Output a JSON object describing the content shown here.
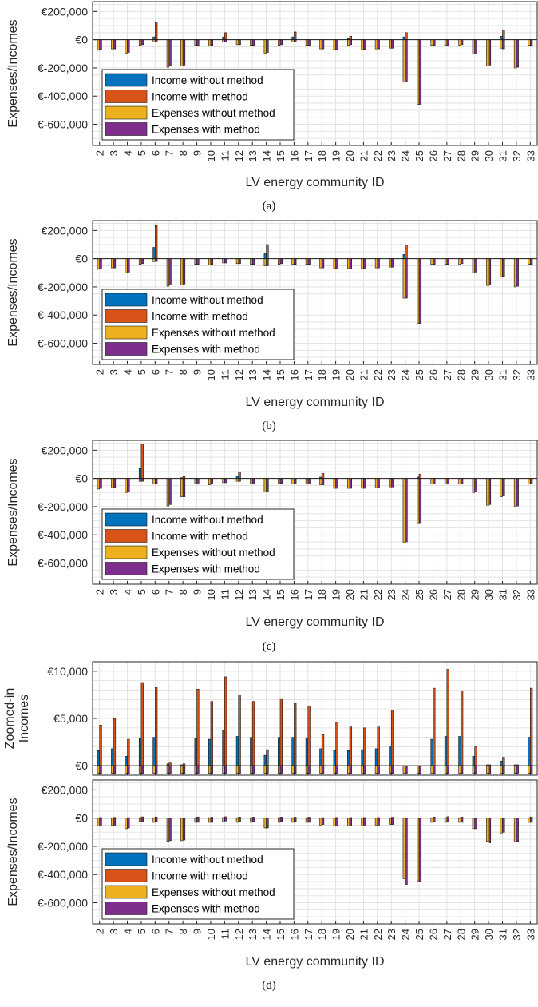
{
  "colors": {
    "income_without": "#0072BD",
    "income_with": "#D95319",
    "expenses_without": "#EDB120",
    "expenses_with": "#7E2F8E",
    "grid": "#e3e3e3",
    "axis": "#262626"
  },
  "legend_labels": [
    "Income without method",
    "Income with method",
    "Expenses without method",
    "Expenses with method"
  ],
  "chart_data": [
    {
      "type": "bar",
      "caption": "(a)",
      "ylabel": "Expenses/Incomes",
      "xlabel": "LV energy community ID",
      "ylim": [
        -750000,
        270000
      ],
      "yticks": [
        200000,
        0,
        -200000,
        -400000,
        -600000
      ],
      "ytick_labels": [
        "€200,000",
        "€0",
        "€-200,000",
        "€-400,000",
        "€-600,000"
      ],
      "grid": true,
      "legend_position": "lower-left",
      "categories": [
        "2",
        "3",
        "4",
        "5",
        "6",
        "7",
        "8",
        "9",
        "10",
        "11",
        "12",
        "13",
        "14",
        "15",
        "16",
        "17",
        "18",
        "19",
        "20",
        "21",
        "22",
        "23",
        "24",
        "25",
        "26",
        "27",
        "28",
        "29",
        "30",
        "31",
        "32",
        "33"
      ],
      "series": [
        {
          "name": "Income without method",
          "values": [
            0,
            0,
            0,
            0,
            20000,
            0,
            0,
            0,
            0,
            20000,
            0,
            0,
            0,
            0,
            20000,
            0,
            0,
            0,
            10000,
            0,
            0,
            0,
            20000,
            0,
            0,
            0,
            0,
            0,
            0,
            25000,
            0,
            0
          ]
        },
        {
          "name": "Income with method",
          "values": [
            0,
            0,
            0,
            0,
            125000,
            0,
            0,
            0,
            0,
            50000,
            0,
            0,
            0,
            0,
            55000,
            0,
            0,
            0,
            25000,
            0,
            0,
            0,
            50000,
            0,
            0,
            0,
            0,
            0,
            0,
            70000,
            0,
            0
          ]
        },
        {
          "name": "Expenses without method",
          "values": [
            -75000,
            -65000,
            -95000,
            -40000,
            -15000,
            -195000,
            -185000,
            -40000,
            -45000,
            -15000,
            -35000,
            -40000,
            -95000,
            -40000,
            -15000,
            -40000,
            -65000,
            -70000,
            -40000,
            -70000,
            -65000,
            -60000,
            -300000,
            -460000,
            -40000,
            -40000,
            -40000,
            -100000,
            -185000,
            -60000,
            -200000,
            -40000
          ]
        },
        {
          "name": "Expenses with method",
          "values": [
            -70000,
            -65000,
            -90000,
            -35000,
            -15000,
            -185000,
            -180000,
            -40000,
            -40000,
            -15000,
            -35000,
            -40000,
            -90000,
            -35000,
            -15000,
            -40000,
            -65000,
            -70000,
            -35000,
            -70000,
            -65000,
            -60000,
            -300000,
            -465000,
            -40000,
            -40000,
            -35000,
            -100000,
            -180000,
            -65000,
            -195000,
            -40000
          ]
        }
      ]
    },
    {
      "type": "bar",
      "caption": "(b)",
      "ylabel": "Expenses/Incomes",
      "xlabel": "LV energy community ID",
      "ylim": [
        -750000,
        270000
      ],
      "yticks": [
        200000,
        0,
        -200000,
        -400000,
        -600000
      ],
      "ytick_labels": [
        "€200,000",
        "€0",
        "€-200,000",
        "€-400,000",
        "€-600,000"
      ],
      "grid": true,
      "legend_position": "lower-left",
      "categories": [
        "2",
        "3",
        "4",
        "5",
        "6",
        "7",
        "8",
        "9",
        "10",
        "11",
        "12",
        "13",
        "14",
        "15",
        "16",
        "17",
        "18",
        "19",
        "20",
        "21",
        "22",
        "23",
        "24",
        "25",
        "26",
        "27",
        "28",
        "29",
        "30",
        "31",
        "32",
        "33"
      ],
      "series": [
        {
          "name": "Income without method",
          "values": [
            0,
            0,
            0,
            0,
            80000,
            0,
            0,
            0,
            0,
            0,
            0,
            0,
            35000,
            0,
            0,
            0,
            0,
            0,
            0,
            0,
            0,
            0,
            30000,
            0,
            0,
            0,
            0,
            0,
            0,
            0,
            0,
            0
          ]
        },
        {
          "name": "Income with method",
          "values": [
            0,
            0,
            0,
            0,
            235000,
            0,
            0,
            0,
            0,
            0,
            0,
            0,
            100000,
            0,
            0,
            0,
            0,
            0,
            0,
            0,
            0,
            0,
            95000,
            0,
            0,
            0,
            0,
            0,
            0,
            0,
            0,
            0
          ]
        },
        {
          "name": "Expenses without method",
          "values": [
            -75000,
            -65000,
            -100000,
            -40000,
            -20000,
            -195000,
            -185000,
            -40000,
            -45000,
            -30000,
            -35000,
            -40000,
            -50000,
            -40000,
            -40000,
            -40000,
            -65000,
            -70000,
            -70000,
            -70000,
            -65000,
            -60000,
            -280000,
            -460000,
            -40000,
            -40000,
            -40000,
            -100000,
            -190000,
            -130000,
            -200000,
            -40000
          ]
        },
        {
          "name": "Expenses with method",
          "values": [
            -70000,
            -65000,
            -95000,
            -35000,
            -20000,
            -185000,
            -180000,
            -40000,
            -40000,
            -30000,
            -35000,
            -40000,
            -50000,
            -35000,
            -40000,
            -40000,
            -65000,
            -70000,
            -70000,
            -70000,
            -65000,
            -60000,
            -280000,
            -460000,
            -40000,
            -40000,
            -35000,
            -95000,
            -185000,
            -125000,
            -195000,
            -40000
          ]
        }
      ]
    },
    {
      "type": "bar",
      "caption": "(c)",
      "ylabel": "Expenses/Incomes",
      "xlabel": "LV energy community ID",
      "ylim": [
        -750000,
        270000
      ],
      "yticks": [
        200000,
        0,
        -200000,
        -400000,
        -600000
      ],
      "ytick_labels": [
        "€200,000",
        "€0",
        "€-200,000",
        "€-400,000",
        "€-600,000"
      ],
      "grid": true,
      "legend_position": "lower-left",
      "categories": [
        "2",
        "3",
        "4",
        "5",
        "6",
        "7",
        "8",
        "9",
        "10",
        "11",
        "12",
        "13",
        "14",
        "15",
        "16",
        "17",
        "18",
        "19",
        "20",
        "21",
        "22",
        "23",
        "24",
        "25",
        "26",
        "27",
        "28",
        "29",
        "30",
        "31",
        "32",
        "33"
      ],
      "series": [
        {
          "name": "Income without method",
          "values": [
            0,
            0,
            0,
            70000,
            0,
            0,
            5000,
            0,
            0,
            0,
            15000,
            0,
            0,
            0,
            0,
            0,
            10000,
            0,
            0,
            0,
            0,
            0,
            0,
            10000,
            0,
            0,
            0,
            0,
            0,
            0,
            0,
            0
          ]
        },
        {
          "name": "Income with method",
          "values": [
            0,
            0,
            0,
            245000,
            0,
            0,
            15000,
            0,
            0,
            0,
            45000,
            0,
            0,
            0,
            0,
            0,
            35000,
            0,
            0,
            0,
            0,
            0,
            0,
            30000,
            0,
            0,
            0,
            0,
            0,
            0,
            0,
            0
          ]
        },
        {
          "name": "Expenses without method",
          "values": [
            -75000,
            -65000,
            -100000,
            -20000,
            -40000,
            -195000,
            -130000,
            -40000,
            -45000,
            -30000,
            -20000,
            -40000,
            -95000,
            -40000,
            -40000,
            -40000,
            -45000,
            -70000,
            -70000,
            -70000,
            -65000,
            -60000,
            -455000,
            -320000,
            -40000,
            -40000,
            -40000,
            -100000,
            -190000,
            -130000,
            -200000,
            -40000
          ]
        },
        {
          "name": "Expenses with method",
          "values": [
            -70000,
            -65000,
            -95000,
            -20000,
            -35000,
            -185000,
            -130000,
            -40000,
            -40000,
            -30000,
            -20000,
            -40000,
            -90000,
            -35000,
            -40000,
            -40000,
            -45000,
            -70000,
            -70000,
            -70000,
            -65000,
            -60000,
            -450000,
            -320000,
            -40000,
            -40000,
            -35000,
            -95000,
            -185000,
            -125000,
            -195000,
            -40000
          ]
        }
      ]
    },
    {
      "type": "bar",
      "ylabel": "Zoomed-in Incomes",
      "ylabel_lines": [
        "Zoomed-in",
        "Incomes"
      ],
      "ylim": [
        -1000,
        11000
      ],
      "yticks": [
        10000,
        5000,
        0
      ],
      "ytick_labels": [
        "€10,000",
        "€5,000",
        "€0"
      ],
      "grid": true,
      "categories": [
        "2",
        "3",
        "4",
        "5",
        "6",
        "7",
        "8",
        "9",
        "10",
        "11",
        "12",
        "13",
        "14",
        "15",
        "16",
        "17",
        "18",
        "19",
        "20",
        "21",
        "22",
        "23",
        "24",
        "25",
        "26",
        "27",
        "28",
        "29",
        "30",
        "31",
        "32",
        "33"
      ],
      "series": [
        {
          "name": "Income without method",
          "values": [
            1600,
            1800,
            1000,
            2900,
            3000,
            200,
            100,
            2900,
            2800,
            3700,
            3100,
            3000,
            1100,
            3000,
            3000,
            2900,
            1800,
            1600,
            1600,
            1700,
            1800,
            2000,
            0,
            0,
            2800,
            3100,
            3100,
            1000,
            100,
            500,
            100,
            3000
          ]
        },
        {
          "name": "Income with method",
          "values": [
            4300,
            5000,
            2800,
            8800,
            8300,
            300,
            200,
            8100,
            6800,
            9400,
            7500,
            6800,
            1700,
            7100,
            6600,
            6300,
            3300,
            4600,
            4100,
            4000,
            4100,
            5800,
            0,
            0,
            8200,
            10200,
            7900,
            2000,
            100,
            900,
            100,
            8200
          ]
        },
        {
          "name": "Expenses without method",
          "values": [
            -800,
            -800,
            -800,
            -800,
            -800,
            -800,
            -800,
            -800,
            -800,
            -800,
            -800,
            -800,
            -800,
            -800,
            -800,
            -800,
            -800,
            -800,
            -800,
            -800,
            -800,
            -800,
            -800,
            -800,
            -800,
            -800,
            -800,
            -800,
            -800,
            -800,
            -800,
            -800
          ]
        },
        {
          "name": "Expenses with method",
          "values": [
            -800,
            -800,
            -800,
            -800,
            -800,
            -800,
            -800,
            -800,
            -800,
            -800,
            -800,
            -800,
            -800,
            -800,
            -800,
            -800,
            -800,
            -800,
            -800,
            -800,
            -800,
            -800,
            -800,
            -800,
            -800,
            -800,
            -800,
            -800,
            -800,
            -800,
            -800,
            -800
          ]
        }
      ]
    },
    {
      "type": "bar",
      "caption": "(d)",
      "ylabel": "Expenses/Incomes",
      "xlabel": "LV energy community ID",
      "ylim": [
        -750000,
        270000
      ],
      "yticks": [
        200000,
        0,
        -200000,
        -400000,
        -600000
      ],
      "ytick_labels": [
        "€200,000",
        "€0",
        "€-200,000",
        "€-400,000",
        "€-600,000"
      ],
      "grid": true,
      "legend_position": "lower-left",
      "categories": [
        "2",
        "3",
        "4",
        "5",
        "6",
        "7",
        "8",
        "9",
        "10",
        "11",
        "12",
        "13",
        "14",
        "15",
        "16",
        "17",
        "18",
        "19",
        "20",
        "21",
        "22",
        "23",
        "24",
        "25",
        "26",
        "27",
        "28",
        "29",
        "30",
        "31",
        "32",
        "33"
      ],
      "series": [
        {
          "name": "Income without method",
          "values": [
            1600,
            1800,
            1000,
            2900,
            3000,
            200,
            100,
            2900,
            2800,
            3700,
            3100,
            3000,
            1100,
            3000,
            3000,
            2900,
            1800,
            1600,
            1600,
            1700,
            1800,
            2000,
            0,
            0,
            2800,
            3100,
            3100,
            1000,
            100,
            500,
            100,
            3000
          ]
        },
        {
          "name": "Income with method",
          "values": [
            4300,
            5000,
            2800,
            8800,
            8300,
            300,
            200,
            8100,
            6800,
            9400,
            7500,
            6800,
            1700,
            7100,
            6600,
            6300,
            3300,
            4600,
            4100,
            4000,
            4100,
            5800,
            0,
            0,
            8200,
            10200,
            7900,
            2000,
            100,
            900,
            100,
            8200
          ]
        },
        {
          "name": "Expenses without method",
          "values": [
            -55000,
            -50000,
            -75000,
            -25000,
            -30000,
            -165000,
            -160000,
            -30000,
            -30000,
            -25000,
            -30000,
            -30000,
            -70000,
            -30000,
            -30000,
            -30000,
            -50000,
            -55000,
            -55000,
            -55000,
            -50000,
            -45000,
            -430000,
            -445000,
            -30000,
            -30000,
            -30000,
            -75000,
            -165000,
            -105000,
            -170000,
            -30000
          ]
        },
        {
          "name": "Expenses with method",
          "values": [
            -50000,
            -50000,
            -70000,
            -25000,
            -25000,
            -160000,
            -155000,
            -30000,
            -30000,
            -20000,
            -25000,
            -25000,
            -70000,
            -25000,
            -25000,
            -30000,
            -45000,
            -55000,
            -55000,
            -55000,
            -50000,
            -45000,
            -470000,
            -450000,
            -25000,
            -25000,
            -30000,
            -75000,
            -175000,
            -100000,
            -165000,
            -30000
          ]
        }
      ]
    }
  ]
}
